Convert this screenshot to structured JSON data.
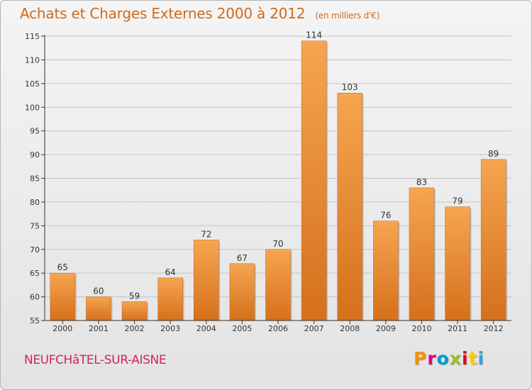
{
  "header": {
    "title": "Achats et Charges Externes 2000 à 2012",
    "unit": "(en milliers d'€)"
  },
  "footer": {
    "place": "NEUFCHâTEL-SUR-AISNE",
    "logo_text": "Proxiti",
    "logo_colors": [
      "#f39200",
      "#e6007e",
      "#0099d8",
      "#95c11f",
      "#e30613",
      "#ffcc00",
      "#2aa8e0"
    ]
  },
  "colors": {
    "bar_light": "#f6a54f",
    "bar_dark": "#d5701c",
    "grid": "#c4c4c4",
    "axis": "#333333",
    "text": "#333333"
  },
  "chart_data": {
    "type": "bar",
    "categories": [
      "2000",
      "2001",
      "2002",
      "2003",
      "2004",
      "2005",
      "2006",
      "2007",
      "2008",
      "2009",
      "2010",
      "2011",
      "2012"
    ],
    "values": [
      65,
      60,
      59,
      64,
      72,
      67,
      70,
      114,
      103,
      76,
      83,
      79,
      89
    ],
    "value_labels": [
      "65",
      "60",
      "59",
      "64",
      "72",
      "67",
      "70",
      "114",
      "103",
      "76",
      "83",
      "79",
      "89"
    ],
    "title": "Achats et Charges Externes 2000 à 2012",
    "xlabel": "",
    "ylabel": "",
    "ylim": [
      55,
      115
    ],
    "yticks": [
      55,
      60,
      65,
      70,
      75,
      80,
      85,
      90,
      95,
      100,
      105,
      110,
      115
    ],
    "ytick_labels": [
      "55",
      "60",
      "65",
      "70",
      "75",
      "80",
      "85",
      "90",
      "95",
      "100",
      "105",
      "110",
      "115"
    ],
    "grid": true,
    "legend": "none"
  }
}
